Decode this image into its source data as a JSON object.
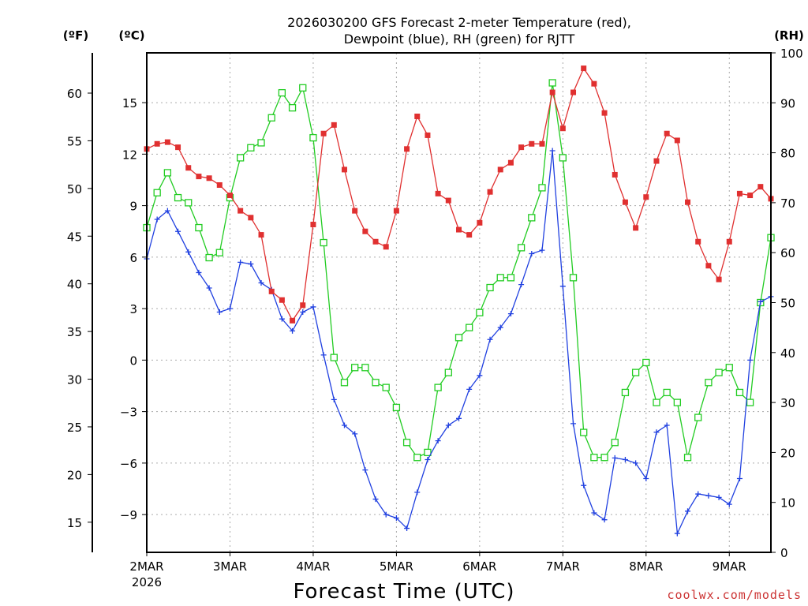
{
  "chart_data": {
    "type": "line",
    "title_line1": "2026030200 GFS Forecast 2-meter Temperature (red),",
    "title_line2": "Dewpoint (blue), RH (green) for RJTT",
    "xlabel": "Forecast Time (UTC)",
    "credit": "coolwx.com/models",
    "units": {
      "fahrenheit": "(ºF)",
      "celsius": "(ºC)",
      "rh": "(RH)"
    },
    "x_range_days": [
      0,
      7.5
    ],
    "celsius_range": [
      -11.2,
      17.9
    ],
    "rh_range": [
      0,
      100
    ],
    "x_ticks": [
      {
        "d": 0,
        "label": "2MAR",
        "sublabel": "2026"
      },
      {
        "d": 1,
        "label": "3MAR"
      },
      {
        "d": 2,
        "label": "4MAR"
      },
      {
        "d": 3,
        "label": "5MAR"
      },
      {
        "d": 4,
        "label": "6MAR"
      },
      {
        "d": 5,
        "label": "7MAR"
      },
      {
        "d": 6,
        "label": "8MAR"
      },
      {
        "d": 7,
        "label": "9MAR"
      }
    ],
    "celsius_ticks": [
      "15",
      "12",
      "9",
      "6",
      "3",
      "0",
      "-3",
      "-6",
      "-9"
    ],
    "fahrenheit_ticks": [
      "60",
      "55",
      "50",
      "45",
      "40",
      "35",
      "30",
      "25",
      "20",
      "15"
    ],
    "rh_ticks": [
      "100",
      "90",
      "80",
      "70",
      "60",
      "50",
      "40",
      "30",
      "20",
      "10",
      "0"
    ],
    "series": [
      {
        "name": "Temperature",
        "unit": "C",
        "color": "#e03030",
        "marker": "square-filled",
        "points": [
          [
            0,
            12.3
          ],
          [
            0.125,
            12.6
          ],
          [
            0.25,
            12.7
          ],
          [
            0.375,
            12.4
          ],
          [
            0.5,
            11.2
          ],
          [
            0.625,
            10.7
          ],
          [
            0.75,
            10.6
          ],
          [
            0.875,
            10.2
          ],
          [
            1.0,
            9.6
          ],
          [
            1.125,
            8.7
          ],
          [
            1.25,
            8.3
          ],
          [
            1.375,
            7.3
          ],
          [
            1.5,
            4.0
          ],
          [
            1.625,
            3.5
          ],
          [
            1.75,
            2.3
          ],
          [
            1.875,
            3.2
          ],
          [
            2.0,
            7.9
          ],
          [
            2.125,
            13.2
          ],
          [
            2.25,
            13.7
          ],
          [
            2.375,
            11.1
          ],
          [
            2.5,
            8.7
          ],
          [
            2.625,
            7.5
          ],
          [
            2.75,
            6.9
          ],
          [
            2.875,
            6.6
          ],
          [
            3.0,
            8.7
          ],
          [
            3.125,
            12.3
          ],
          [
            3.25,
            14.2
          ],
          [
            3.375,
            13.1
          ],
          [
            3.5,
            9.7
          ],
          [
            3.625,
            9.3
          ],
          [
            3.75,
            7.6
          ],
          [
            3.875,
            7.3
          ],
          [
            4.0,
            8.0
          ],
          [
            4.125,
            9.8
          ],
          [
            4.25,
            11.1
          ],
          [
            4.375,
            11.5
          ],
          [
            4.5,
            12.4
          ],
          [
            4.625,
            12.6
          ],
          [
            4.75,
            12.6
          ],
          [
            4.875,
            15.6
          ],
          [
            5.0,
            13.5
          ],
          [
            5.125,
            15.6
          ],
          [
            5.25,
            17.0
          ],
          [
            5.375,
            16.1
          ],
          [
            5.5,
            14.4
          ],
          [
            5.625,
            10.8
          ],
          [
            5.75,
            9.2
          ],
          [
            5.875,
            7.7
          ],
          [
            6.0,
            9.5
          ],
          [
            6.125,
            11.6
          ],
          [
            6.25,
            13.2
          ],
          [
            6.375,
            12.8
          ],
          [
            6.5,
            9.2
          ],
          [
            6.625,
            6.9
          ],
          [
            6.75,
            5.5
          ],
          [
            6.875,
            4.7
          ],
          [
            7.0,
            6.9
          ],
          [
            7.125,
            9.7
          ],
          [
            7.25,
            9.6
          ],
          [
            7.375,
            10.1
          ],
          [
            7.5,
            9.4
          ]
        ]
      },
      {
        "name": "Dewpoint",
        "unit": "C",
        "color": "#2040e0",
        "marker": "plus",
        "points": [
          [
            0,
            5.9
          ],
          [
            0.125,
            8.2
          ],
          [
            0.25,
            8.7
          ],
          [
            0.375,
            7.5
          ],
          [
            0.5,
            6.3
          ],
          [
            0.625,
            5.1
          ],
          [
            0.75,
            4.2
          ],
          [
            0.875,
            2.8
          ],
          [
            1.0,
            3.0
          ],
          [
            1.125,
            5.7
          ],
          [
            1.25,
            5.6
          ],
          [
            1.375,
            4.5
          ],
          [
            1.5,
            4.1
          ],
          [
            1.625,
            2.4
          ],
          [
            1.75,
            1.7
          ],
          [
            1.875,
            2.8
          ],
          [
            2.0,
            3.1
          ],
          [
            2.125,
            0.3
          ],
          [
            2.25,
            -2.3
          ],
          [
            2.375,
            -3.8
          ],
          [
            2.5,
            -4.3
          ],
          [
            2.625,
            -6.4
          ],
          [
            2.75,
            -8.1
          ],
          [
            2.875,
            -9.0
          ],
          [
            3.0,
            -9.2
          ],
          [
            3.125,
            -9.8
          ],
          [
            3.25,
            -7.7
          ],
          [
            3.375,
            -5.8
          ],
          [
            3.5,
            -4.7
          ],
          [
            3.625,
            -3.8
          ],
          [
            3.75,
            -3.4
          ],
          [
            3.875,
            -1.7
          ],
          [
            4.0,
            -0.9
          ],
          [
            4.125,
            1.2
          ],
          [
            4.25,
            1.9
          ],
          [
            4.375,
            2.7
          ],
          [
            4.5,
            4.4
          ],
          [
            4.625,
            6.2
          ],
          [
            4.75,
            6.4
          ],
          [
            4.875,
            12.2
          ],
          [
            5.0,
            4.3
          ],
          [
            5.125,
            -3.7
          ],
          [
            5.25,
            -7.3
          ],
          [
            5.375,
            -8.9
          ],
          [
            5.5,
            -9.3
          ],
          [
            5.625,
            -5.7
          ],
          [
            5.75,
            -5.8
          ],
          [
            5.875,
            -6.0
          ],
          [
            6.0,
            -6.9
          ],
          [
            6.125,
            -4.2
          ],
          [
            6.25,
            -3.8
          ],
          [
            6.375,
            -10.1
          ],
          [
            6.5,
            -8.8
          ],
          [
            6.625,
            -7.8
          ],
          [
            6.75,
            -7.9
          ],
          [
            6.875,
            -8.0
          ],
          [
            7.0,
            -8.4
          ],
          [
            7.125,
            -6.9
          ],
          [
            7.25,
            0.0
          ],
          [
            7.375,
            3.4
          ],
          [
            7.5,
            3.7
          ]
        ]
      },
      {
        "name": "RH",
        "unit": "%",
        "color": "#22cc22",
        "marker": "square-open",
        "points": [
          [
            0,
            65
          ],
          [
            0.125,
            72
          ],
          [
            0.25,
            76
          ],
          [
            0.375,
            71
          ],
          [
            0.5,
            70
          ],
          [
            0.625,
            65
          ],
          [
            0.75,
            59
          ],
          [
            0.875,
            60
          ],
          [
            1.0,
            71
          ],
          [
            1.125,
            79
          ],
          [
            1.25,
            81
          ],
          [
            1.375,
            82
          ],
          [
            1.5,
            87
          ],
          [
            1.625,
            92
          ],
          [
            1.75,
            89
          ],
          [
            1.875,
            93
          ],
          [
            2.0,
            83
          ],
          [
            2.125,
            62
          ],
          [
            2.25,
            39
          ],
          [
            2.375,
            34
          ],
          [
            2.5,
            37
          ],
          [
            2.625,
            37
          ],
          [
            2.75,
            34
          ],
          [
            2.875,
            33
          ],
          [
            3.0,
            29
          ],
          [
            3.125,
            22
          ],
          [
            3.25,
            19
          ],
          [
            3.375,
            20
          ],
          [
            3.5,
            33
          ],
          [
            3.625,
            36
          ],
          [
            3.75,
            43
          ],
          [
            3.875,
            45
          ],
          [
            4.0,
            48
          ],
          [
            4.125,
            53
          ],
          [
            4.25,
            55
          ],
          [
            4.375,
            55
          ],
          [
            4.5,
            61
          ],
          [
            4.625,
            67
          ],
          [
            4.75,
            73
          ],
          [
            4.875,
            94
          ],
          [
            5.0,
            79
          ],
          [
            5.125,
            55
          ],
          [
            5.25,
            24
          ],
          [
            5.375,
            19
          ],
          [
            5.5,
            19
          ],
          [
            5.625,
            22
          ],
          [
            5.75,
            32
          ],
          [
            5.875,
            36
          ],
          [
            6.0,
            38
          ],
          [
            6.125,
            30
          ],
          [
            6.25,
            32
          ],
          [
            6.375,
            30
          ],
          [
            6.5,
            19
          ],
          [
            6.625,
            27
          ],
          [
            6.75,
            34
          ],
          [
            6.875,
            36
          ],
          [
            7.0,
            37
          ],
          [
            7.125,
            32
          ],
          [
            7.25,
            30
          ],
          [
            7.375,
            50
          ],
          [
            7.5,
            63
          ]
        ]
      }
    ]
  }
}
